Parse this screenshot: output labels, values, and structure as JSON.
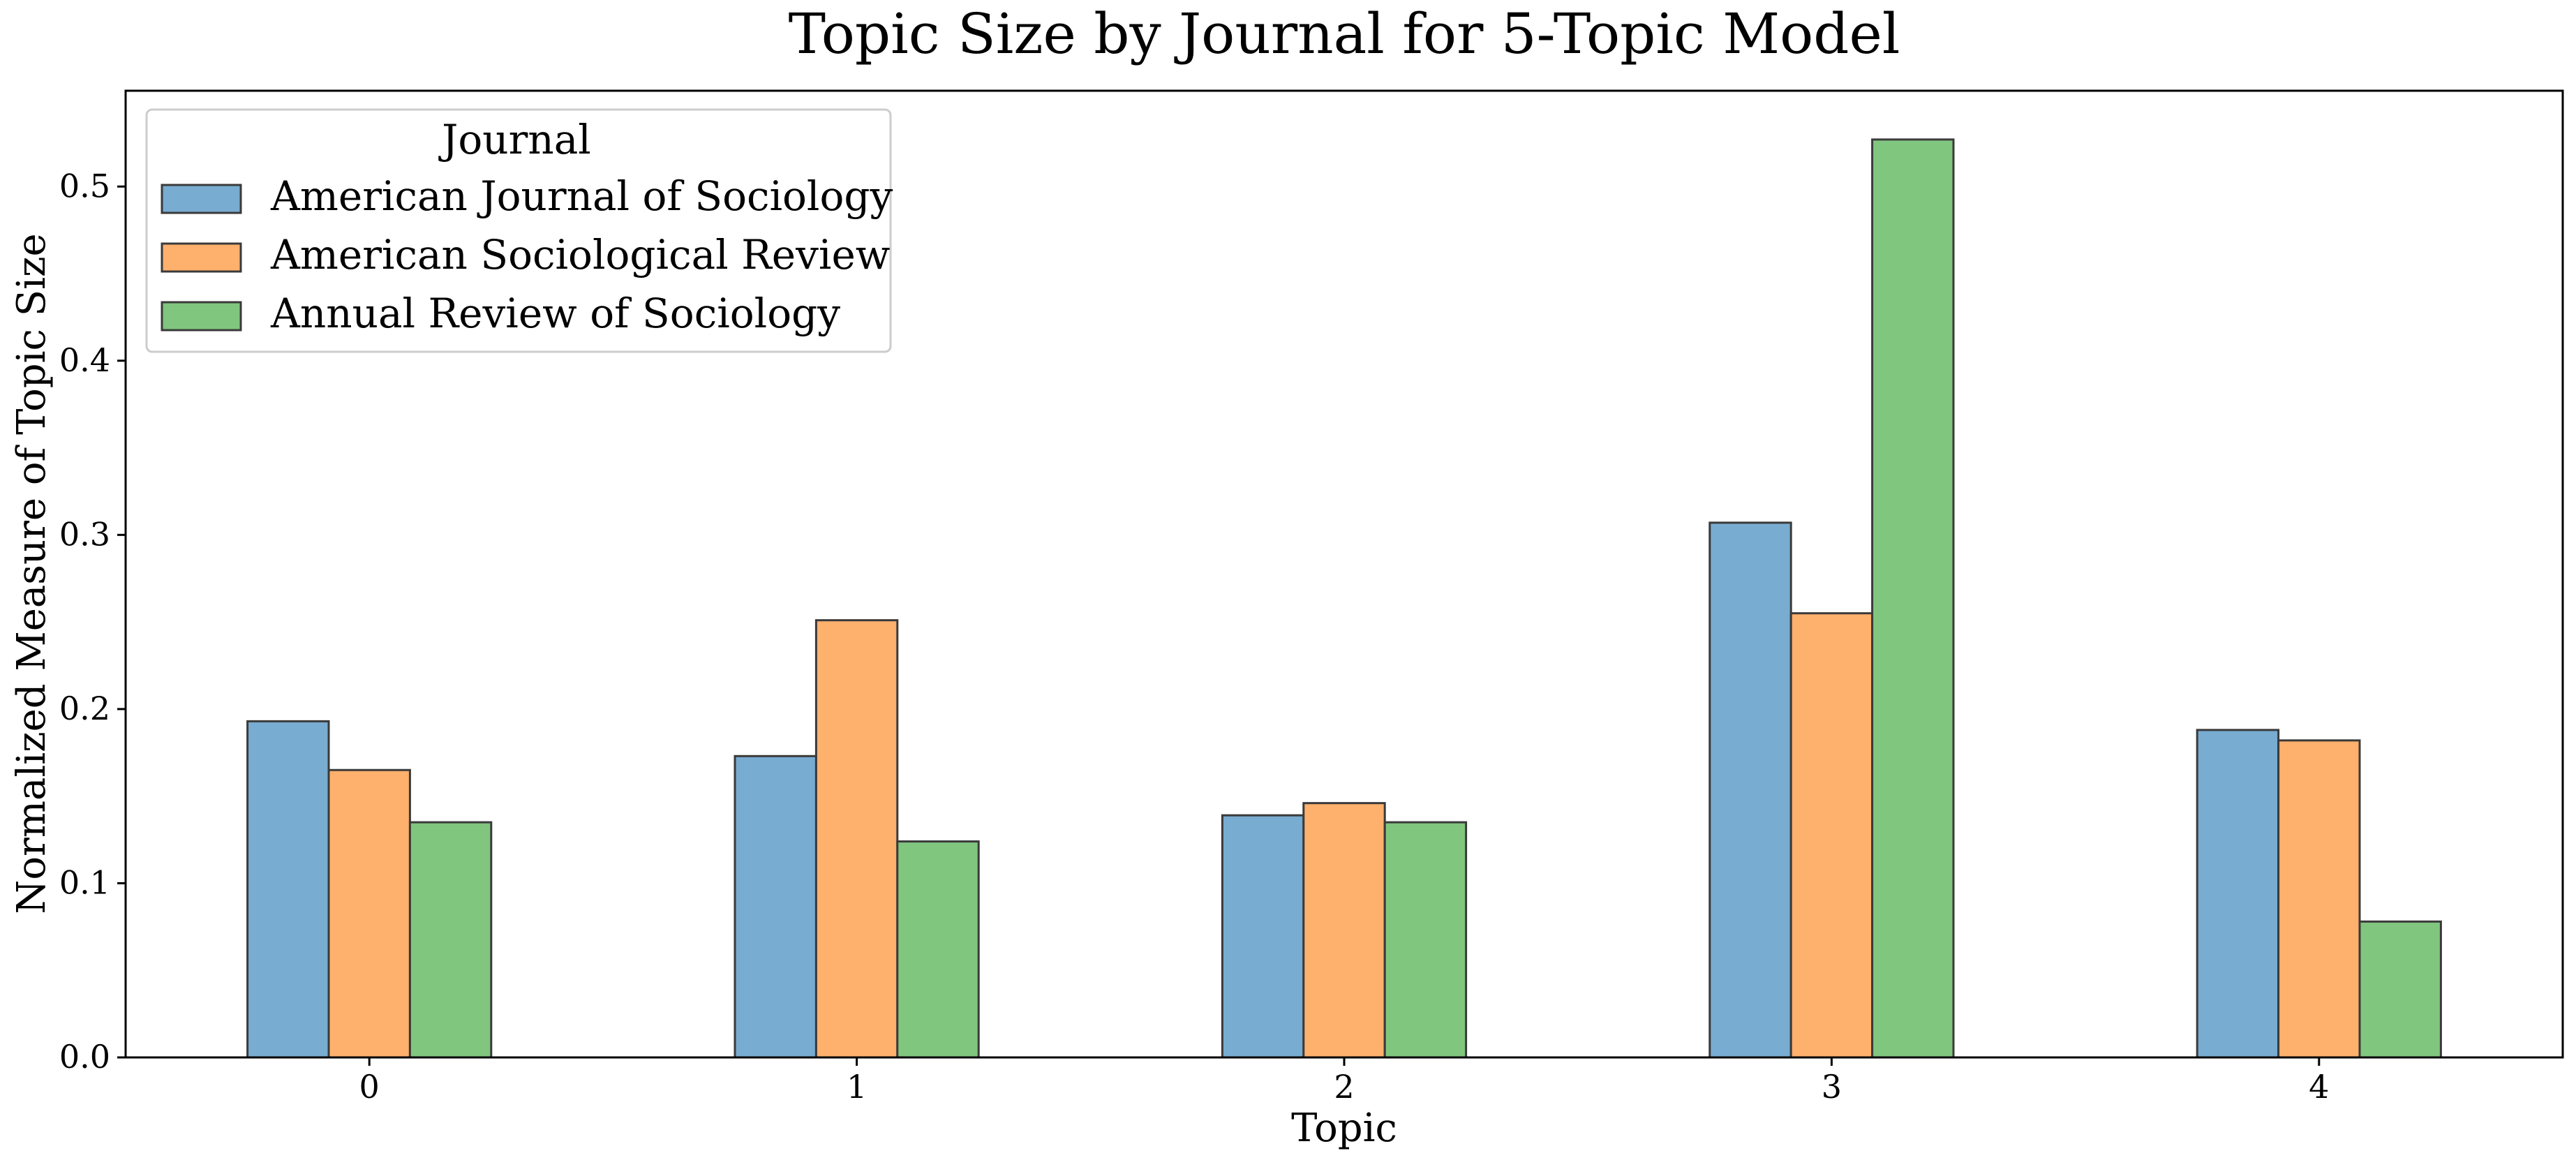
{
  "chart_data": {
    "type": "bar",
    "title": "Topic Size by Journal for 5-Topic Model",
    "xlabel": "Topic",
    "ylabel": "Normalized Measure of Topic Size",
    "categories": [
      "0",
      "1",
      "2",
      "3",
      "4"
    ],
    "ylim": [
      0,
      0.555
    ],
    "yticks": [
      0.0,
      0.1,
      0.2,
      0.3,
      0.4,
      0.5
    ],
    "ytick_labels": [
      "0.0",
      "0.1",
      "0.2",
      "0.3",
      "0.4",
      "0.5"
    ],
    "grid": false,
    "legend": {
      "title": "Journal",
      "placement": "top-left"
    },
    "series": [
      {
        "name": "American Journal of Sociology",
        "color": "#78acd1",
        "values": [
          0.193,
          0.173,
          0.139,
          0.307,
          0.188
        ]
      },
      {
        "name": "American Sociological Review",
        "color": "#feb06d",
        "values": [
          0.165,
          0.251,
          0.146,
          0.255,
          0.182
        ]
      },
      {
        "name": "Annual Review of Sociology",
        "color": "#81c67f",
        "values": [
          0.135,
          0.124,
          0.135,
          0.527,
          0.078
        ]
      }
    ]
  }
}
